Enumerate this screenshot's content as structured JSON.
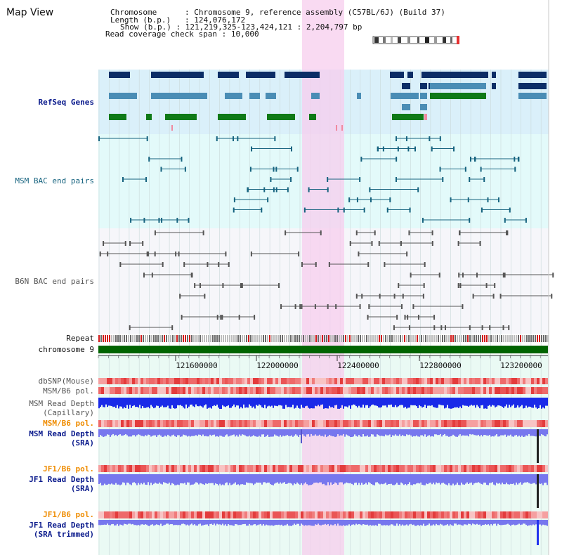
{
  "title": "Map View",
  "info": [
    {
      "label": "Chromosome",
      "value": "Chromosome 9, reference assembly (C57BL/6J) (Build 37)"
    },
    {
      "label": "Length (b.p.)",
      "value": "124,076,172"
    },
    {
      "label": "Show (b.p.)",
      "value": "121,219,325-123,424,121 : 2,204,797 bp"
    },
    {
      "label": "Read coverage check span",
      "value": "10,000"
    }
  ],
  "tracks": {
    "refseq": "RefSeq Genes",
    "msm_bac": "MSM BAC end pairs",
    "b6n_bac": "B6N BAC end pairs",
    "repeat": "Repeat",
    "chromosome": "chromosome 9",
    "dbsnp": "dbSNP(Mouse)",
    "msm_b6_pol": "MSM/B6 pol.",
    "msm_depth_cap": [
      "MSM Read Depth",
      "(Capillary)"
    ],
    "msm_b6_pol_2": "MSM/B6 pol.",
    "msm_depth_sra": [
      "MSM Read Depth",
      "(SRA)"
    ],
    "jf1_b6_pol": "JF1/B6 pol.",
    "jf1_depth_sra": [
      "JF1 Read Depth",
      "(SRA)"
    ],
    "jf1_b6_pol_2": "JF1/B6 pol.",
    "jf1_depth_trim": [
      "JF1 Read Depth",
      "(SRA trimmed)"
    ]
  },
  "axis": {
    "ticks": [
      "121600000",
      "122000000",
      "122400000",
      "122800000",
      "123200000"
    ]
  },
  "colors": {
    "refseq_dark": "#0c2d66",
    "refseq_mid": "#4a8db5",
    "refseq_green": "#0f7a17",
    "msm_line": "#16637f",
    "b6n_line": "#555555",
    "chromosome_bar": "#006400",
    "highlight": "#f9d2ef",
    "depth_capillary": "#1a2ae8",
    "depth_sra": "#7777ee"
  }
}
